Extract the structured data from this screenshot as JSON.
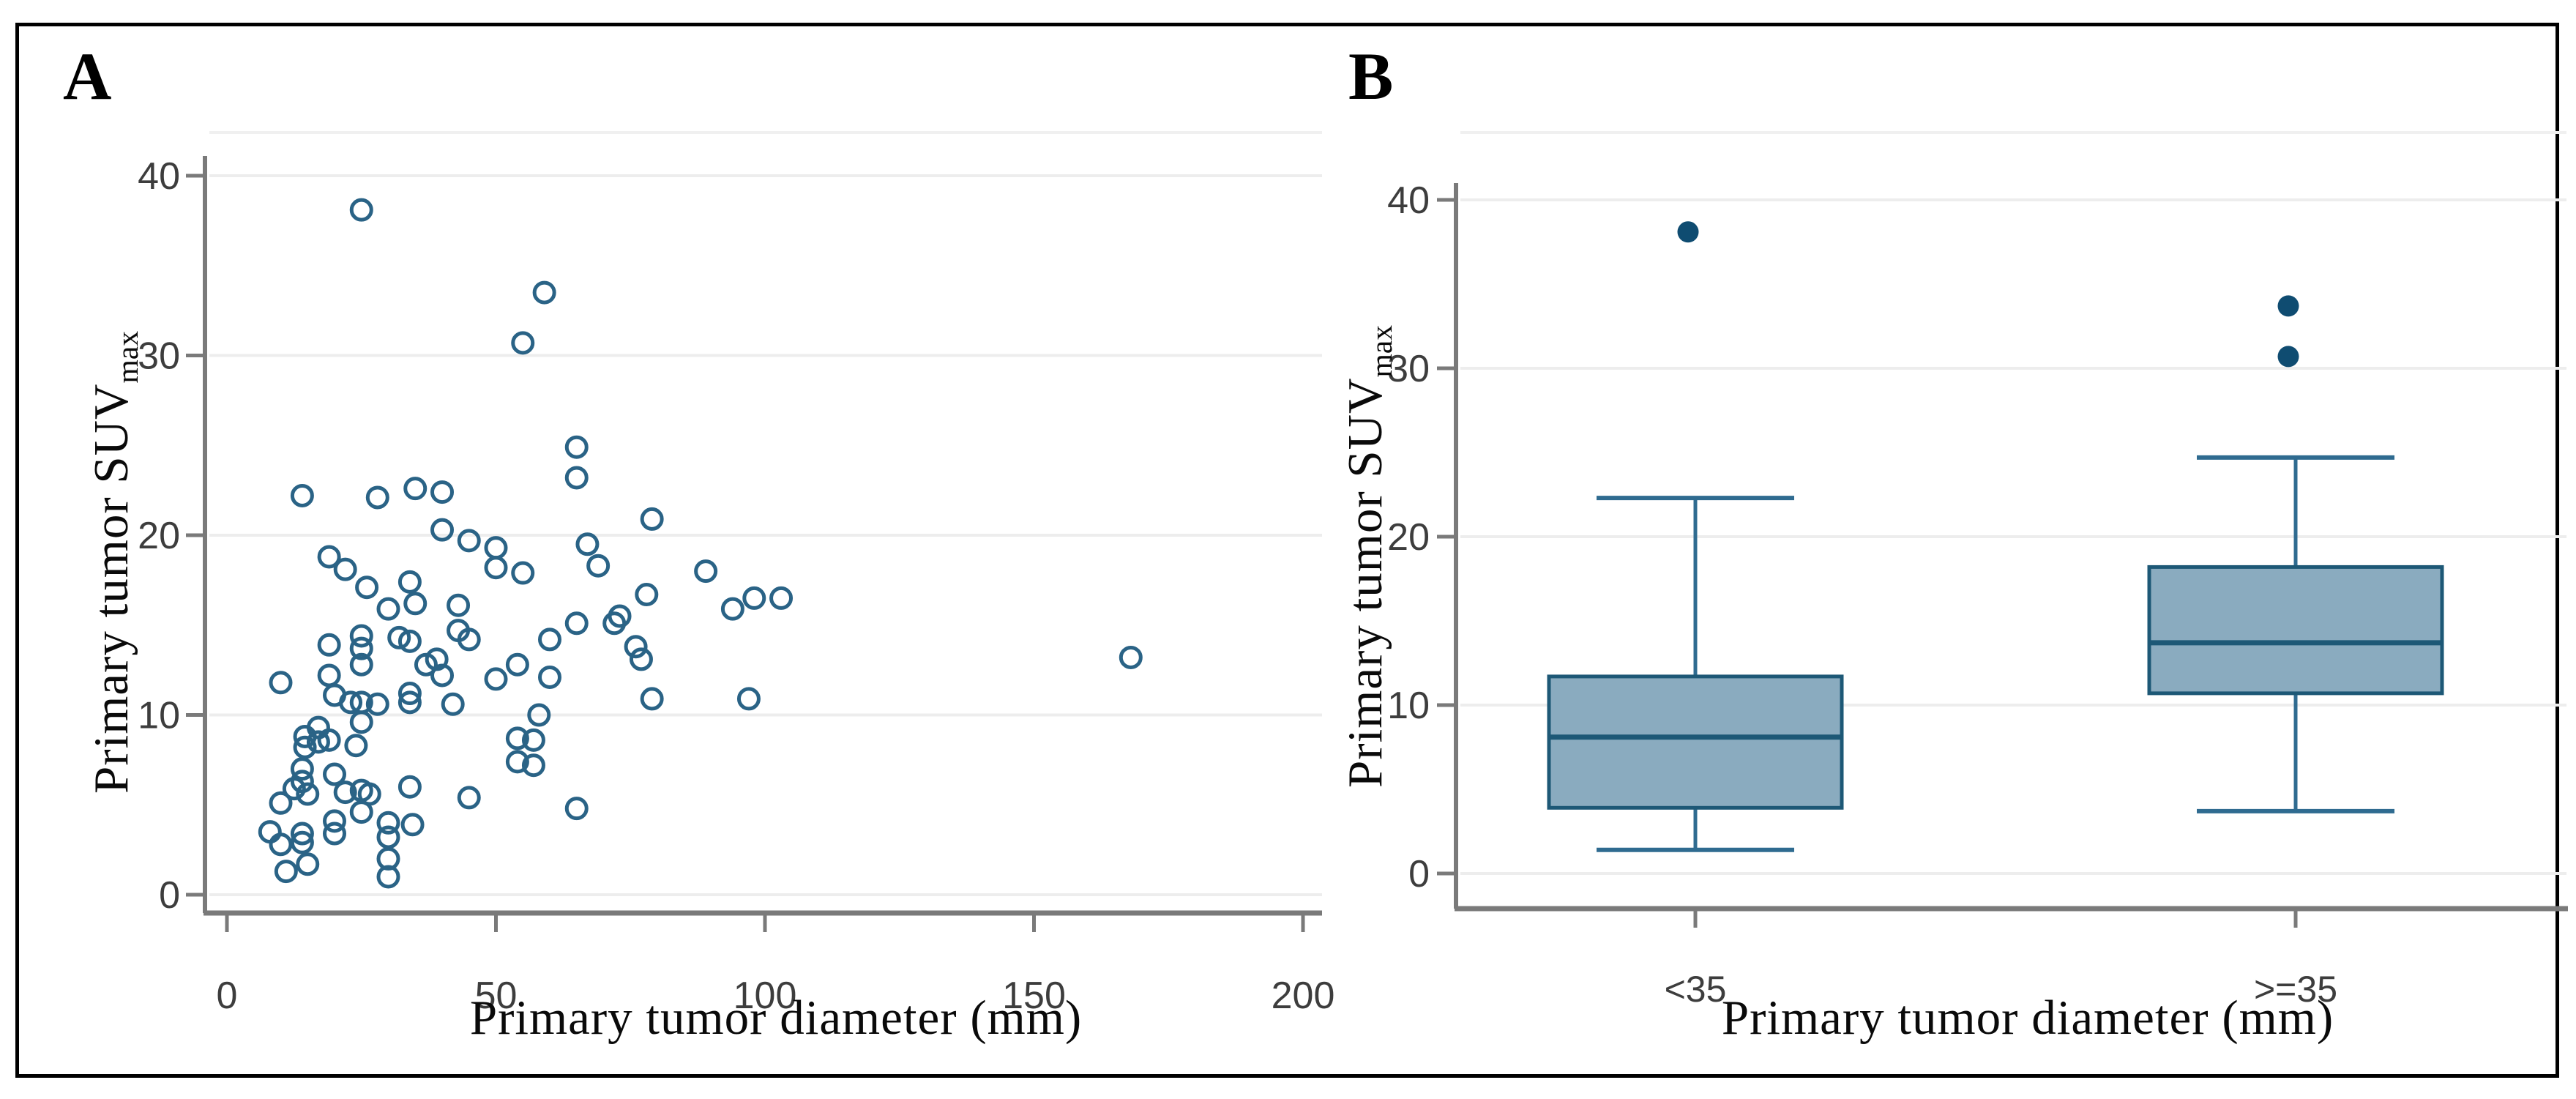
{
  "figure": {
    "panels": [
      {
        "letter": "A"
      },
      {
        "letter": "B"
      }
    ],
    "border_color": "#000000",
    "background": "#ffffff"
  },
  "colors": {
    "scatter_marker": "#2a6386",
    "axis_line": "#7a7a7a",
    "gridline": "#ededed",
    "plot_top_edge": "#f0f0f0",
    "tick_label": "#3d3d3d",
    "box_fill": "#8aabbf",
    "box_border": "#1d5876",
    "whisker": "#2f6b90",
    "outlier_dot": "#0f4c71"
  },
  "chart_data": [
    {
      "type": "scatter",
      "panel": "A",
      "xlabel": "Primary tumor diameter (mm)",
      "ylabel": "Primary tumor SUV",
      "ylabel_subscript": "max",
      "xlim": [
        0,
        200
      ],
      "ylim": [
        0,
        40
      ],
      "xticks": [
        0,
        50,
        100,
        150,
        200
      ],
      "yticks": [
        0,
        10,
        20,
        30,
        40
      ],
      "grid": "horizontal",
      "legend": "none",
      "marker": {
        "shape": "circle-open",
        "color": "#2a6386"
      },
      "points": [
        [
          25,
          38.1
        ],
        [
          59,
          33.5
        ],
        [
          55,
          30.7
        ],
        [
          65,
          24.9
        ],
        [
          65,
          23.2
        ],
        [
          14,
          22.2
        ],
        [
          28,
          22.1
        ],
        [
          35,
          22.6
        ],
        [
          40,
          22.4
        ],
        [
          40,
          20.3
        ],
        [
          45,
          19.7
        ],
        [
          50,
          19.3
        ],
        [
          50,
          18.2
        ],
        [
          55,
          17.9
        ],
        [
          19,
          18.8
        ],
        [
          22,
          18.1
        ],
        [
          34,
          17.4
        ],
        [
          67,
          19.5
        ],
        [
          69,
          18.3
        ],
        [
          79,
          20.9
        ],
        [
          89,
          18.0
        ],
        [
          26,
          17.1
        ],
        [
          30,
          15.9
        ],
        [
          35,
          16.2
        ],
        [
          43,
          16.1
        ],
        [
          43,
          14.7
        ],
        [
          45,
          14.2
        ],
        [
          19,
          13.9
        ],
        [
          25,
          14.4
        ],
        [
          25,
          13.7
        ],
        [
          25,
          12.8
        ],
        [
          32,
          14.3
        ],
        [
          34,
          14.1
        ],
        [
          37,
          12.8
        ],
        [
          39,
          13.1
        ],
        [
          40,
          12.2
        ],
        [
          10,
          11.8
        ],
        [
          19,
          12.2
        ],
        [
          50,
          12.0
        ],
        [
          54,
          12.8
        ],
        [
          60,
          14.2
        ],
        [
          60,
          12.1
        ],
        [
          65,
          15.1
        ],
        [
          72,
          15.1
        ],
        [
          73,
          15.5
        ],
        [
          78,
          16.7
        ],
        [
          76,
          13.8
        ],
        [
          77,
          13.1
        ],
        [
          94,
          15.9
        ],
        [
          98,
          16.5
        ],
        [
          103,
          16.5
        ],
        [
          79,
          10.9
        ],
        [
          97,
          10.9
        ],
        [
          20,
          11.1
        ],
        [
          23,
          10.7
        ],
        [
          25,
          10.7
        ],
        [
          28,
          10.6
        ],
        [
          34,
          11.2
        ],
        [
          34,
          10.7
        ],
        [
          42,
          10.6
        ],
        [
          58,
          10.0
        ],
        [
          25,
          9.6
        ],
        [
          17,
          9.3
        ],
        [
          17,
          8.5
        ],
        [
          14.5,
          8.8
        ],
        [
          14.5,
          8.2
        ],
        [
          19,
          8.6
        ],
        [
          24,
          8.3
        ],
        [
          54,
          8.7
        ],
        [
          57,
          8.6
        ],
        [
          54,
          7.4
        ],
        [
          57,
          7.2
        ],
        [
          14,
          7.0
        ],
        [
          14,
          6.3
        ],
        [
          20,
          6.7
        ],
        [
          12.5,
          5.9
        ],
        [
          15,
          5.6
        ],
        [
          22,
          5.7
        ],
        [
          25,
          5.8
        ],
        [
          26.5,
          5.6
        ],
        [
          34,
          6.0
        ],
        [
          45,
          5.4
        ],
        [
          65,
          4.8
        ],
        [
          10,
          5.1
        ],
        [
          25,
          4.6
        ],
        [
          20,
          4.1
        ],
        [
          20,
          3.4
        ],
        [
          30,
          4.0
        ],
        [
          30,
          3.2
        ],
        [
          34.5,
          3.9
        ],
        [
          8,
          3.5
        ],
        [
          14,
          3.4
        ],
        [
          14,
          2.9
        ],
        [
          10,
          2.8
        ],
        [
          15,
          1.7
        ],
        [
          11,
          1.3
        ],
        [
          30,
          2.0
        ],
        [
          30,
          1.0
        ],
        [
          168,
          13.2
        ]
      ]
    },
    {
      "type": "boxplot",
      "panel": "B",
      "xlabel": "Primary tumor diameter (mm)",
      "ylabel": "Primary tumor SUV",
      "ylabel_subscript": "max",
      "ylim": [
        0,
        40
      ],
      "yticks": [
        0,
        10,
        20,
        30,
        40
      ],
      "grid": "horizontal",
      "categories": [
        "<35",
        ">=35"
      ],
      "boxes": [
        {
          "category": "<35",
          "whisker_low": 1.4,
          "q1": 3.9,
          "median": 8.1,
          "q3": 11.7,
          "whisker_high": 22.3,
          "outliers": [
            38.1
          ]
        },
        {
          "category": ">=35",
          "whisker_low": 3.7,
          "q1": 10.7,
          "median": 13.7,
          "q3": 18.2,
          "whisker_high": 24.7,
          "outliers": [
            30.7,
            33.7
          ]
        }
      ]
    }
  ]
}
